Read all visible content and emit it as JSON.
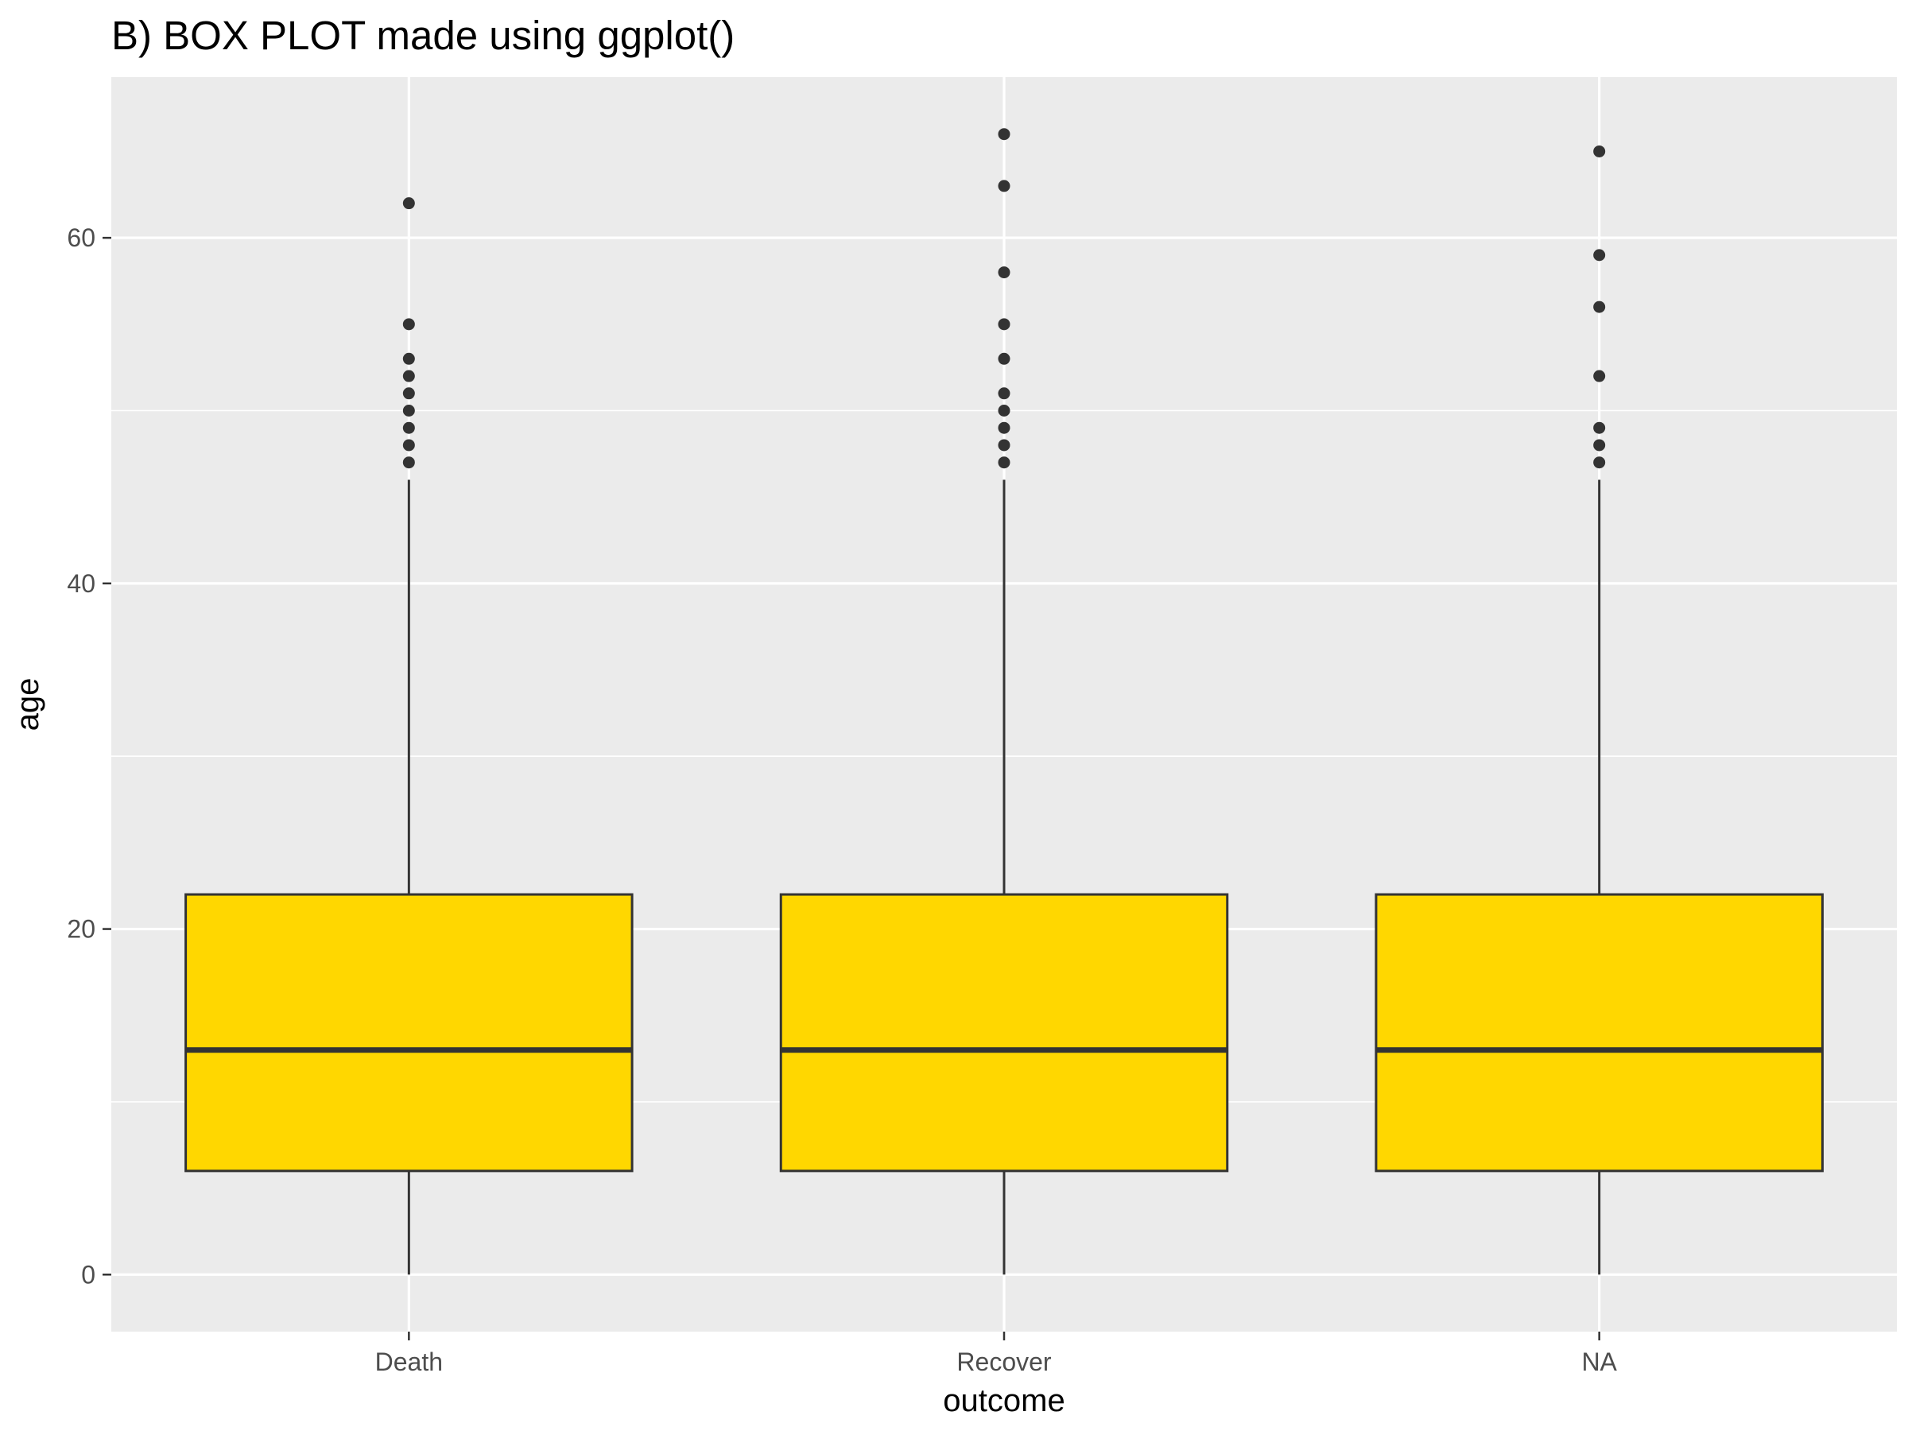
{
  "chart_data": {
    "type": "boxplot",
    "title": "B) BOX PLOT made using ggplot()",
    "xlabel": "outcome",
    "ylabel": "age",
    "categories": [
      "Death",
      "Recover",
      "NA"
    ],
    "boxes": [
      {
        "category": "Death",
        "whisker_low": 0,
        "q1": 6,
        "median": 13,
        "q3": 22,
        "whisker_high": 46,
        "outliers": [
          47,
          48,
          49,
          50,
          51,
          52,
          53,
          55,
          62
        ]
      },
      {
        "category": "Recover",
        "whisker_low": 0,
        "q1": 6,
        "median": 13,
        "q3": 22,
        "whisker_high": 46,
        "outliers": [
          47,
          48,
          49,
          50,
          51,
          53,
          55,
          58,
          63,
          66
        ]
      },
      {
        "category": "NA",
        "whisker_low": 0,
        "q1": 6,
        "median": 13,
        "q3": 22,
        "whisker_high": 46,
        "outliers": [
          47,
          48,
          49,
          52,
          56,
          59,
          65
        ]
      }
    ],
    "ylim": [
      -3.3,
      69.3
    ],
    "yticks": [
      0,
      20,
      40,
      60
    ],
    "yticks_minor": [
      10,
      30,
      50
    ],
    "grid": true,
    "legend": "none",
    "colors": {
      "panel_background": "#EBEBEB",
      "grid": "#FFFFFF",
      "box_fill": "#FFD700",
      "box_outline": "#333333",
      "outlier": "#333333",
      "tick": "#333333",
      "tick_label": "#4D4D4D",
      "text": "#000000"
    }
  }
}
